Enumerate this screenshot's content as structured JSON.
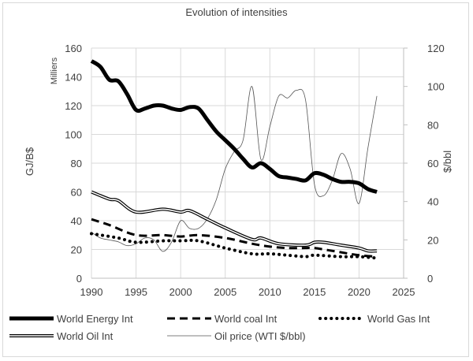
{
  "chart_data": {
    "type": "line",
    "title": "Evolution of intensities",
    "ylabel": "GJ/B$",
    "ylabel_unit_note": "Milliers",
    "y2label": "$/bbl",
    "xlim": [
      1990,
      2025
    ],
    "ylim": [
      0,
      160
    ],
    "y2lim": [
      0,
      120
    ],
    "xticks": [
      1990,
      1995,
      2000,
      2005,
      2010,
      2015,
      2020,
      2025
    ],
    "yticks": [
      0,
      20,
      40,
      60,
      80,
      100,
      120,
      140,
      160
    ],
    "y2ticks": [
      0,
      20,
      40,
      60,
      80,
      100,
      120
    ],
    "grid": true,
    "legend_position": "bottom",
    "series": [
      {
        "name": "World Energy Int",
        "style": "thick",
        "axis": "left",
        "x": [
          1990,
          1991,
          1992,
          1993,
          1994,
          1995,
          1996,
          1997,
          1998,
          1999,
          2000,
          2001,
          2002,
          2003,
          2004,
          2005,
          2006,
          2007,
          2008,
          2009,
          2010,
          2011,
          2012,
          2013,
          2014,
          2015,
          2016,
          2017,
          2018,
          2019,
          2020,
          2021,
          2022
        ],
        "values": [
          151,
          147,
          138,
          137,
          128,
          117,
          118,
          120,
          120,
          118,
          117,
          119,
          118,
          110,
          102,
          96,
          90,
          83,
          77,
          80,
          76,
          71,
          70,
          69,
          68,
          73,
          72,
          69,
          67,
          67,
          66,
          62,
          60
        ]
      },
      {
        "name": "World coal Int",
        "style": "dashed",
        "axis": "left",
        "x": [
          1990,
          1992,
          1995,
          1998,
          2000,
          2002,
          2005,
          2008,
          2010,
          2012,
          2014,
          2015,
          2018,
          2020,
          2022
        ],
        "values": [
          41,
          37,
          30,
          30,
          29,
          30,
          28,
          24,
          22,
          21,
          21,
          21,
          18,
          16,
          15
        ]
      },
      {
        "name": "World Gas Int",
        "style": "dotted",
        "axis": "left",
        "x": [
          1990,
          1993,
          1995,
          1998,
          2000,
          2002,
          2005,
          2008,
          2010,
          2012,
          2014,
          2015,
          2018,
          2020,
          2022
        ],
        "values": [
          31,
          28,
          25,
          26,
          26,
          26,
          21,
          17,
          17,
          16,
          15,
          16,
          15,
          15,
          14
        ]
      },
      {
        "name": "World Oil Int",
        "style": "double",
        "axis": "left",
        "x": [
          1990,
          1992,
          1993,
          1995,
          1998,
          2000,
          2001,
          2003,
          2005,
          2008,
          2009,
          2011,
          2014,
          2015,
          2016,
          2018,
          2020,
          2021,
          2022
        ],
        "values": [
          60,
          55,
          54,
          46,
          48,
          46,
          47,
          41,
          35,
          27,
          28,
          24,
          23,
          25,
          25,
          23,
          21,
          19,
          19
        ]
      },
      {
        "name": "Oil price (WTI $/bbl)",
        "style": "thin",
        "axis": "right",
        "x": [
          1990,
          1991,
          1992,
          1993,
          1994,
          1995,
          1996,
          1997,
          1998,
          1999,
          2000,
          2001,
          2002,
          2003,
          2004,
          2005,
          2006,
          2007,
          2008,
          2009,
          2010,
          2011,
          2012,
          2013,
          2014,
          2015,
          2016,
          2017,
          2018,
          2019,
          2020,
          2021,
          2022
        ],
        "values": [
          24,
          21,
          20,
          19,
          17,
          18,
          21,
          20,
          14,
          19,
          30,
          26,
          26,
          31,
          41,
          57,
          66,
          72,
          100,
          62,
          79,
          95,
          94,
          98,
          93,
          49,
          43,
          51,
          65,
          57,
          39,
          68,
          95
        ]
      }
    ]
  }
}
